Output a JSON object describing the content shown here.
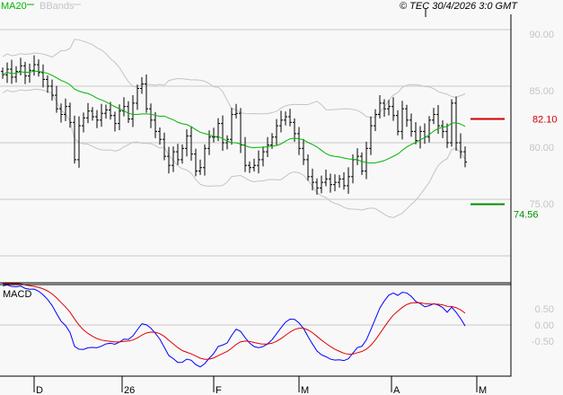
{
  "header": {
    "legend_ma": "MA20",
    "legend_bb": "BBands",
    "copyright": "© TEC 30/4/2026 3:0 GMT"
  },
  "colors": {
    "background": "#f8f8f8",
    "grid": "#c8c8c8",
    "bars": "#000000",
    "ma20": "#00b400",
    "bbands": "#c4c4c4",
    "macd": "#0000ff",
    "signal": "#e00000",
    "resistance": "#d00000",
    "support": "#009000"
  },
  "chart_data": [
    {
      "type": "ohlc",
      "title": "",
      "series_names": [
        "MA20",
        "BBands"
      ],
      "y_ticks": [
        "90.00",
        "85.00",
        "80.00",
        "75.00"
      ],
      "y_tick_values": [
        90,
        85,
        80,
        75
      ],
      "ylim": [
        68.6,
        92.6
      ],
      "x_ticks": [
        "D",
        "26",
        "F",
        "M",
        "A",
        "M"
      ],
      "x_tick_index": [
        7,
        26.6,
        47,
        66,
        86.6,
        105.6
      ],
      "grid": true,
      "levels": [
        {
          "label": "82.10",
          "value": 82.1,
          "kind": "resistance"
        },
        {
          "label": "74.56",
          "value": 74.56,
          "kind": "support"
        }
      ],
      "closes": [
        86.0,
        86.5,
        85.8,
        86.3,
        86.8,
        85.9,
        86.4,
        86.9,
        86.2,
        85.6,
        85.0,
        84.2,
        83.0,
        82.5,
        83.2,
        81.8,
        78.5,
        81.5,
        82.2,
        82.8,
        82.3,
        82.0,
        82.6,
        82.9,
        82.4,
        81.7,
        82.8,
        83.2,
        82.1,
        83.5,
        84.8,
        85.2,
        83.0,
        82.0,
        81.0,
        80.3,
        78.8,
        78.0,
        79.2,
        78.5,
        79.5,
        80.6,
        79.0,
        77.5,
        77.8,
        79.5,
        80.5,
        80.5,
        81.7,
        80.0,
        80.3,
        82.5,
        82.6,
        79.8,
        78.0,
        77.8,
        78.0,
        78.5,
        79.2,
        79.8,
        80.5,
        81.5,
        82.0,
        82.3,
        81.8,
        80.8,
        79.5,
        78.5,
        77.0,
        76.5,
        76.0,
        76.5,
        76.8,
        76.3,
        76.5,
        76.8,
        76.2,
        77.0,
        78.5,
        78.8,
        77.5,
        79.5,
        81.5,
        82.5,
        83.5,
        83.0,
        83.2,
        82.4,
        81.0,
        83.0,
        82.0,
        81.0,
        80.2,
        81.0,
        80.5,
        82.0,
        82.5,
        81.5,
        81.0,
        80.0,
        83.5,
        80.0,
        79.2,
        78.3
      ]
    },
    {
      "type": "line",
      "title": "MACD",
      "y_ticks": [
        "0.50",
        "0.00",
        "-0.50"
      ],
      "y_tick_values": [
        0.5,
        0,
        -0.5
      ],
      "ylim": [
        -1.6,
        1.3
      ],
      "series": [
        {
          "name": "MACD"
        },
        {
          "name": "Signal"
        }
      ]
    }
  ]
}
